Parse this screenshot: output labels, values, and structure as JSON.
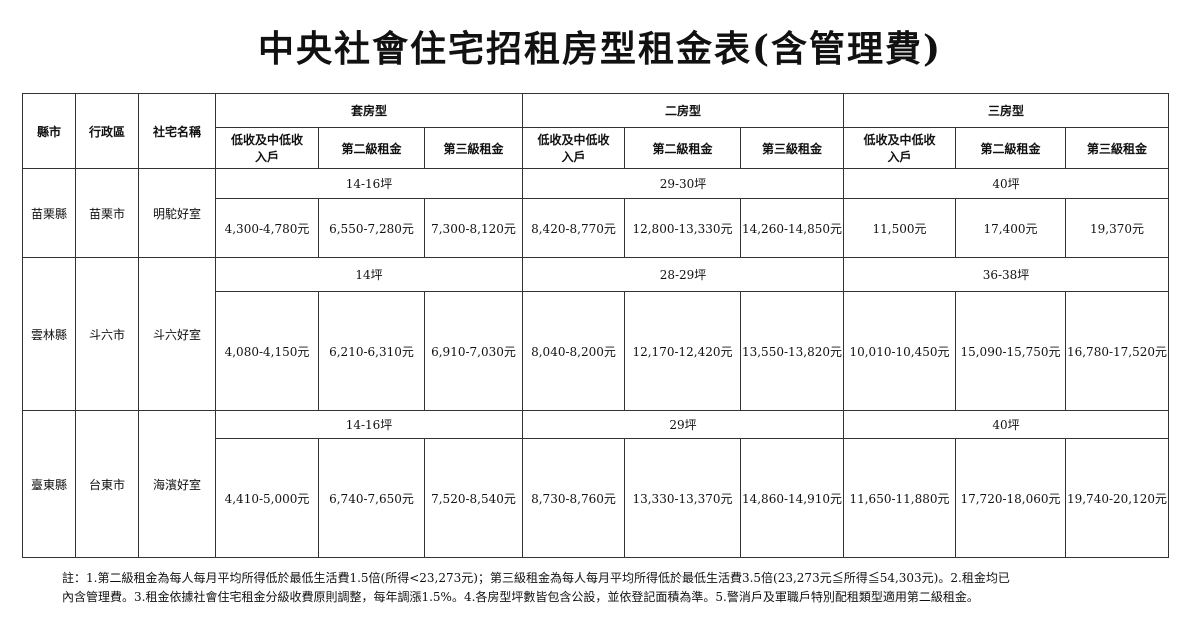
{
  "title": "中央社會住宅招租房型租金表(含管理費)",
  "headers": {
    "county": "縣市",
    "district": "行政區",
    "housing_name": "社宅名稱",
    "groups": [
      "套房型",
      "二房型",
      "三房型"
    ],
    "sub": [
      "低收及中低收入戶",
      "第二級租金",
      "第三級租金"
    ]
  },
  "rows": [
    {
      "county": "苗栗縣",
      "district": "苗栗市",
      "name": "明駝好室",
      "areas": [
        "14-16坪",
        "29-30坪",
        "40坪"
      ],
      "prices": [
        "4,300-4,780元",
        "6,550-7,280元",
        "7,300-8,120元",
        "8,420-8,770元",
        "12,800-13,330元",
        "14,260-14,850元",
        "11,500元",
        "17,400元",
        "19,370元"
      ]
    },
    {
      "county": "雲林縣",
      "district": "斗六市",
      "name": "斗六好室",
      "areas": [
        "14坪",
        "28-29坪",
        "36-38坪"
      ],
      "prices": [
        "4,080-4,150元",
        "6,210-6,310元",
        "6,910-7,030元",
        "8,040-8,200元",
        "12,170-12,420元",
        "13,550-13,820元",
        "10,010-10,450元",
        "15,090-15,750元",
        "16,780-17,520元"
      ]
    },
    {
      "county": "臺東縣",
      "district": "台東市",
      "name": "海濱好室",
      "areas": [
        "14-16坪",
        "29坪",
        "40坪"
      ],
      "prices": [
        "4,410-5,000元",
        "6,740-7,650元",
        "7,520-8,540元",
        "8,730-8,760元",
        "13,330-13,370元",
        "14,860-14,910元",
        "11,650-11,880元",
        "17,720-18,060元",
        "19,740-20,120元"
      ]
    }
  ],
  "notes": [
    "註：1.第二級租金為每人每月平均所得低於最低生活費1.5倍(所得<23,273元)；第三級租金為每人每月平均所得低於最低生活費3.5倍(23,273元≦所得≦54,303元)。2.租金均已",
    "內含管理費。3.租金依據社會住宅租金分級收費原則調整，每年調漲1.5%。4.各房型坪數皆包含公設，並依登記面積為準。5.警消戶及軍職戶特別配租類型適用第二級租金。"
  ]
}
